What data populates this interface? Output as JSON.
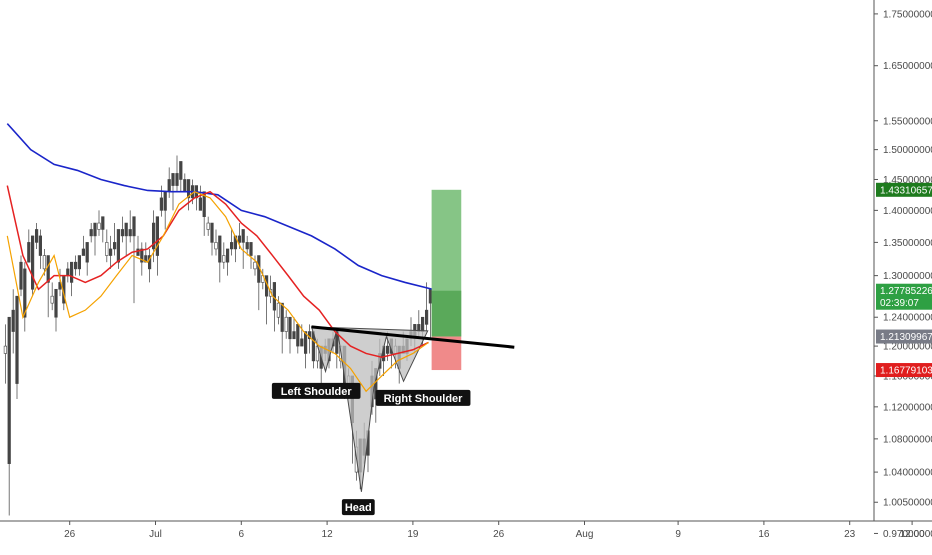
{
  "chart_data": {
    "type": "candlestick",
    "price_axis": {
      "ticks": [
        "1.75000000",
        "1.65000000",
        "1.55000000",
        "1.50000000",
        "1.45000000",
        "1.40000000",
        "1.35000000",
        "1.30000000",
        "1.24000000",
        "1.20000000",
        "1.16000000",
        "1.12000000",
        "1.08000000",
        "1.04000000",
        "1.00500000",
        "0.97000000"
      ],
      "tick_values": [
        1.75,
        1.65,
        1.55,
        1.5,
        1.45,
        1.4,
        1.35,
        1.3,
        1.24,
        1.2,
        1.16,
        1.12,
        1.08,
        1.04,
        1.005,
        0.97
      ],
      "scale": "log",
      "ylim": [
        0.965,
        1.79
      ]
    },
    "time_axis": {
      "ticks": [
        "26",
        "Jul",
        "6",
        "12",
        "19",
        "26",
        "Aug",
        "9",
        "16",
        "23",
        "12:00"
      ],
      "tick_index": [
        8,
        19,
        30,
        41,
        52,
        63,
        74,
        86,
        97,
        108,
        116
      ],
      "xlim": [
        0,
        119
      ]
    },
    "price_tags": [
      {
        "name": "target",
        "label": "1.43310657",
        "value": 1.4331,
        "color": "#1e7b1e"
      },
      {
        "name": "last-price",
        "label": "1.27785226",
        "sublabel": "02:39:07",
        "value": 1.2779,
        "color": "#2ea043"
      },
      {
        "name": "neckline-price",
        "label": "1.21309967",
        "value": 1.2131,
        "color": "#787b86"
      },
      {
        "name": "stop",
        "label": "1.16779103",
        "value": 1.1678,
        "color": "#e01e1e"
      }
    ],
    "annotations": [
      {
        "name": "left-shoulder",
        "text": "Left Shoulder",
        "x": 39.6,
        "y": 1.1405
      },
      {
        "name": "right-shoulder",
        "text": "Right Shoulder",
        "x": 53.3,
        "y": 1.1315
      },
      {
        "name": "head",
        "text": "Head",
        "x": 45.0,
        "y": 0.9995
      }
    ],
    "position": {
      "entry": 1.2131,
      "target": 1.4331,
      "stop": 1.1678,
      "x_start": 54.4,
      "x_end": 58.2,
      "profit_color": "#86c586",
      "loss_color": "#f08a8a"
    },
    "neckline": {
      "points": [
        [
          39.0,
          1.2265
        ],
        [
          65.0,
          1.1985
        ]
      ],
      "color": "#000000"
    },
    "pattern": {
      "points": [
        [
          39.0,
          1.2265
        ],
        [
          40.8,
          1.166
        ],
        [
          42.3,
          1.225
        ],
        [
          45.4,
          1.017
        ],
        [
          47.0,
          1.145
        ],
        [
          48.6,
          1.213
        ],
        [
          50.8,
          1.153
        ],
        [
          53.9,
          1.221
        ]
      ],
      "fill": "#bdbdbd"
    },
    "ma_fast": {
      "color": "#f5a200",
      "x": [
        0,
        2,
        4,
        6,
        8,
        10,
        12,
        14,
        16,
        18,
        20,
        22,
        24,
        26,
        28,
        30,
        32,
        34,
        36,
        38,
        40,
        42,
        44,
        46,
        48,
        50,
        52,
        54
      ],
      "y": [
        1.36,
        1.24,
        1.29,
        1.33,
        1.24,
        1.25,
        1.27,
        1.3,
        1.33,
        1.32,
        1.36,
        1.41,
        1.43,
        1.42,
        1.39,
        1.34,
        1.32,
        1.27,
        1.25,
        1.22,
        1.2,
        1.19,
        1.17,
        1.14,
        1.16,
        1.18,
        1.19,
        1.205
      ]
    },
    "ma_mid": {
      "color": "#e52222",
      "x": [
        0,
        2,
        4,
        6,
        8,
        10,
        12,
        14,
        16,
        18,
        20,
        22,
        24,
        26,
        28,
        30,
        32,
        34,
        36,
        38,
        40,
        42,
        44,
        46,
        48,
        50,
        52,
        54
      ],
      "y": [
        1.44,
        1.33,
        1.28,
        1.3,
        1.3,
        1.29,
        1.3,
        1.32,
        1.335,
        1.34,
        1.36,
        1.4,
        1.42,
        1.43,
        1.41,
        1.38,
        1.36,
        1.33,
        1.3,
        1.27,
        1.25,
        1.22,
        1.2,
        1.19,
        1.185,
        1.19,
        1.195,
        1.205
      ]
    },
    "ma_slow": {
      "color": "#1a25c9",
      "x": [
        0,
        3,
        6,
        9,
        12,
        15,
        18,
        21,
        24,
        27,
        30,
        33,
        36,
        39,
        42,
        45,
        48,
        51,
        54.5
      ],
      "y": [
        1.545,
        1.5,
        1.475,
        1.465,
        1.45,
        1.44,
        1.432,
        1.43,
        1.43,
        1.425,
        1.4,
        1.39,
        1.375,
        1.36,
        1.34,
        1.315,
        1.3,
        1.29,
        1.28
      ]
    },
    "candles": [
      [
        1.19,
        1.2,
        1.23,
        1.15,
        1.24,
        1.05,
        0.99
      ],
      [
        1.25,
        1.22,
        1.28,
        1.19,
        1.27,
        1.15,
        1.13
      ],
      [
        1.32,
        1.28,
        1.33,
        1.27,
        1.31,
        1.24,
        1.22
      ],
      [
        1.35,
        1.32,
        1.37,
        1.32,
        1.36,
        1.28,
        1.27
      ],
      [
        1.37,
        1.35,
        1.38,
        1.34,
        1.36,
        1.33,
        1.31
      ],
      [
        1.31,
        1.33,
        1.34,
        1.3,
        1.33,
        1.29,
        1.24
      ],
      [
        1.26,
        1.27,
        1.29,
        1.25,
        1.28,
        1.24,
        1.22
      ],
      [
        1.29,
        1.28,
        1.31,
        1.27,
        1.3,
        1.26,
        1.25
      ],
      [
        1.31,
        1.3,
        1.32,
        1.29,
        1.32,
        1.29,
        1.27
      ],
      [
        1.32,
        1.31,
        1.33,
        1.3,
        1.33,
        1.31,
        1.3
      ],
      [
        1.34,
        1.33,
        1.36,
        1.33,
        1.35,
        1.32,
        1.3
      ],
      [
        1.37,
        1.36,
        1.38,
        1.35,
        1.38,
        1.36,
        1.33
      ],
      [
        1.37,
        1.38,
        1.4,
        1.36,
        1.39,
        1.37,
        1.35
      ],
      [
        1.33,
        1.35,
        1.37,
        1.32,
        1.34,
        1.33,
        1.31
      ],
      [
        1.35,
        1.34,
        1.38,
        1.33,
        1.37,
        1.32,
        1.31
      ],
      [
        1.37,
        1.36,
        1.39,
        1.35,
        1.38,
        1.36,
        1.33
      ],
      [
        1.37,
        1.36,
        1.4,
        1.35,
        1.39,
        1.36,
        1.26
      ],
      [
        1.34,
        1.33,
        1.36,
        1.33,
        1.34,
        1.32,
        1.3
      ],
      [
        1.33,
        1.32,
        1.35,
        1.32,
        1.33,
        1.31,
        1.29
      ],
      [
        1.38,
        1.34,
        1.4,
        1.32,
        1.39,
        1.33,
        1.3
      ],
      [
        1.42,
        1.4,
        1.44,
        1.39,
        1.43,
        1.4,
        1.37
      ],
      [
        1.45,
        1.43,
        1.47,
        1.42,
        1.46,
        1.44,
        1.4
      ],
      [
        1.46,
        1.44,
        1.49,
        1.43,
        1.48,
        1.45,
        1.43
      ],
      [
        1.45,
        1.43,
        1.46,
        1.43,
        1.45,
        1.42,
        1.4
      ],
      [
        1.44,
        1.42,
        1.45,
        1.41,
        1.44,
        1.42,
        1.4
      ],
      [
        1.42,
        1.4,
        1.44,
        1.4,
        1.43,
        1.39,
        1.36
      ],
      [
        1.37,
        1.38,
        1.39,
        1.36,
        1.38,
        1.35,
        1.33
      ],
      [
        1.34,
        1.35,
        1.37,
        1.33,
        1.36,
        1.32,
        1.29
      ],
      [
        1.32,
        1.33,
        1.35,
        1.31,
        1.34,
        1.32,
        1.3
      ],
      [
        1.35,
        1.34,
        1.37,
        1.33,
        1.36,
        1.34,
        1.32
      ],
      [
        1.36,
        1.35,
        1.38,
        1.34,
        1.37,
        1.35,
        1.31
      ],
      [
        1.35,
        1.34,
        1.36,
        1.33,
        1.35,
        1.33,
        1.31
      ],
      [
        1.31,
        1.32,
        1.33,
        1.3,
        1.33,
        1.29,
        1.25
      ],
      [
        1.29,
        1.3,
        1.31,
        1.28,
        1.3,
        1.27,
        1.23
      ],
      [
        1.27,
        1.28,
        1.3,
        1.26,
        1.29,
        1.25,
        1.22
      ],
      [
        1.24,
        1.26,
        1.27,
        1.23,
        1.26,
        1.22,
        1.19
      ],
      [
        1.22,
        1.24,
        1.25,
        1.21,
        1.24,
        1.21,
        1.19
      ],
      [
        1.22,
        1.21,
        1.24,
        1.21,
        1.23,
        1.2,
        1.19
      ],
      [
        1.21,
        1.2,
        1.23,
        1.2,
        1.22,
        1.19,
        1.17
      ],
      [
        1.22,
        1.21,
        1.23,
        1.19,
        1.22,
        1.18,
        1.17
      ],
      [
        1.18,
        1.2,
        1.21,
        1.17,
        1.2,
        1.17,
        1.15
      ],
      [
        1.2,
        1.19,
        1.21,
        1.18,
        1.21,
        1.18,
        1.17
      ],
      [
        1.21,
        1.2,
        1.22,
        1.19,
        1.22,
        1.19,
        1.17
      ],
      [
        1.18,
        1.2,
        1.2,
        1.17,
        1.2,
        1.15,
        1.13
      ],
      [
        1.15,
        1.16,
        1.17,
        1.13,
        1.16,
        1.1,
        1.05
      ],
      [
        1.04,
        1.07,
        1.09,
        1.03,
        1.08,
        1.04,
        1.02
      ],
      [
        1.08,
        1.06,
        1.1,
        1.05,
        1.09,
        1.06,
        1.04
      ],
      [
        1.16,
        1.12,
        1.18,
        1.11,
        1.17,
        1.13,
        1.1
      ],
      [
        1.19,
        1.17,
        1.21,
        1.16,
        1.2,
        1.18,
        1.16
      ],
      [
        1.2,
        1.19,
        1.22,
        1.18,
        1.21,
        1.19,
        1.17
      ],
      [
        1.19,
        1.2,
        1.21,
        1.17,
        1.2,
        1.17,
        1.15
      ],
      [
        1.2,
        1.19,
        1.22,
        1.19,
        1.21,
        1.19,
        1.18
      ],
      [
        1.22,
        1.21,
        1.24,
        1.2,
        1.23,
        1.21,
        1.19
      ],
      [
        1.23,
        1.22,
        1.25,
        1.21,
        1.24,
        1.22,
        1.2
      ],
      [
        1.25,
        1.23,
        1.29,
        1.22,
        1.28,
        1.26,
        1.21
      ]
    ]
  }
}
